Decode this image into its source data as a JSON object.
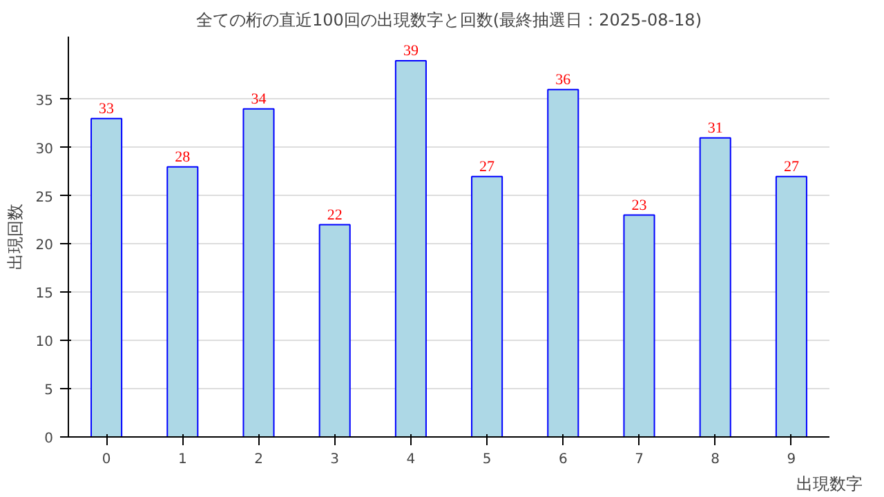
{
  "chart_data": {
    "type": "bar",
    "title": "全ての桁の直近100回の出現数字と回数(最終抽選日：2025-08-18)",
    "xlabel": "出現数字",
    "ylabel": "出現回数",
    "categories": [
      "0",
      "1",
      "2",
      "3",
      "4",
      "5",
      "6",
      "7",
      "8",
      "9"
    ],
    "values": [
      33,
      28,
      34,
      22,
      39,
      27,
      36,
      23,
      31,
      27
    ],
    "color": "#add8e6",
    "ylim": [
      0,
      41.5
    ],
    "yticks": [
      0,
      5,
      10,
      15,
      20,
      25,
      30,
      35
    ],
    "grid": "y",
    "data_labels": true
  }
}
